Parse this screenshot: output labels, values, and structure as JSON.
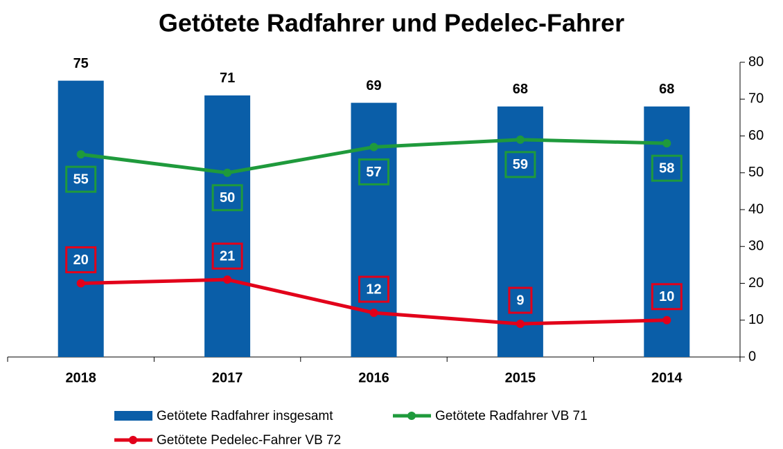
{
  "chart_data": {
    "type": "bar",
    "title": "Getötete Radfahrer und Pedelec-Fahrer",
    "categories": [
      "2018",
      "2017",
      "2016",
      "2015",
      "2014"
    ],
    "series": [
      {
        "name": "Getötete Radfahrer insgesamt",
        "type": "bar",
        "color": "#0a5ea8",
        "axis": "y2",
        "values": [
          75,
          71,
          69,
          68,
          68
        ]
      },
      {
        "name": "Getötete Radfahrer VB 71",
        "type": "line",
        "color": "#1f9a3c",
        "axis": "y2",
        "values": [
          55,
          50,
          57,
          59,
          58
        ]
      },
      {
        "name": "Getötete Pedelec-Fahrer VB 72",
        "type": "line",
        "color": "#e2001a",
        "axis": "y2",
        "values": [
          20,
          21,
          12,
          9,
          10
        ]
      }
    ],
    "y2lim": [
      0,
      80
    ],
    "y2ticks": [
      0,
      10,
      20,
      30,
      40,
      50,
      60,
      70,
      80
    ],
    "grid": false
  }
}
